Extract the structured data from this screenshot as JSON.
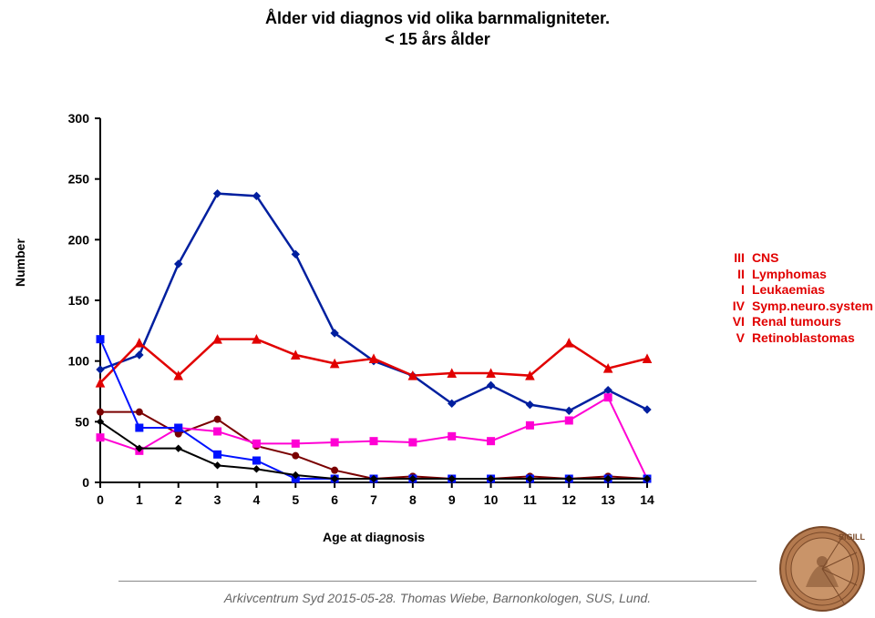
{
  "title": {
    "line1": "Ålder vid diagnos vid olika barnmaligniteter.",
    "line2": "< 15 års ålder",
    "fontsize": 18
  },
  "chart": {
    "type": "line",
    "background_color": "#ffffff",
    "axis_color": "#000000",
    "axis_width": 2,
    "xlabel": "Age at diagnosis",
    "ylabel": "Number",
    "label_fontsize": 14,
    "tick_fontsize": 14,
    "xlim": [
      0,
      14
    ],
    "xticks": [
      0,
      1,
      2,
      3,
      4,
      5,
      6,
      7,
      8,
      9,
      10,
      11,
      12,
      13,
      14
    ],
    "ylim": [
      0,
      300
    ],
    "yticks": [
      0,
      50,
      100,
      150,
      200,
      250,
      300
    ],
    "x": [
      0,
      1,
      2,
      3,
      4,
      5,
      6,
      7,
      8,
      9,
      10,
      11,
      12,
      13,
      14
    ],
    "series": [
      {
        "id": "III",
        "label": "CNS",
        "color": "#001f9f",
        "marker": "diamond",
        "marker_size": 8,
        "line_width": 2.5,
        "y": [
          93,
          105,
          180,
          238,
          236,
          188,
          123,
          100,
          88,
          65,
          80,
          64,
          59,
          76,
          60
        ]
      },
      {
        "id": "II",
        "label": "Lymphomas",
        "color": "#e10000",
        "marker": "triangle",
        "marker_size": 9,
        "line_width": 2.5,
        "y": [
          82,
          115,
          88,
          118,
          118,
          105,
          98,
          102,
          88,
          90,
          90,
          88,
          115,
          94,
          102
        ]
      },
      {
        "id": "I",
        "label": "Leukaemias",
        "color": "#7a0000",
        "marker": "circle",
        "marker_size": 7,
        "line_width": 2,
        "y": [
          58,
          58,
          40,
          52,
          30,
          22,
          10,
          3,
          5,
          3,
          3,
          5,
          3,
          5,
          3
        ]
      },
      {
        "id": "IV",
        "label": "Symp.neuro.system",
        "color": "#ff00d4",
        "marker": "square",
        "marker_size": 8,
        "line_width": 2,
        "y": [
          37,
          26,
          45,
          42,
          32,
          32,
          33,
          34,
          33,
          38,
          34,
          47,
          51,
          70,
          3
        ]
      },
      {
        "id": "VI",
        "label": "Renal tumours",
        "color": "#0012ff",
        "marker": "square",
        "marker_size": 8,
        "line_width": 2,
        "y": [
          118,
          45,
          45,
          23,
          18,
          3,
          3,
          3,
          3,
          3,
          3,
          3,
          3,
          3,
          3
        ]
      },
      {
        "id": "V",
        "label": "Retinoblastomas",
        "color": "#000000",
        "marker": "diamond",
        "marker_size": 7,
        "line_width": 2,
        "y": [
          50,
          28,
          28,
          14,
          11,
          6,
          3,
          3,
          3,
          3,
          3,
          3,
          3,
          3,
          3
        ]
      }
    ],
    "legend": {
      "position": "right-middle",
      "fontsize": 14,
      "items": [
        {
          "roman": "III",
          "label": "CNS",
          "color": "#e10000"
        },
        {
          "roman": "II",
          "label": "Lymphomas",
          "color": "#e10000"
        },
        {
          "roman": "I",
          "label": "Leukaemias",
          "color": "#e10000"
        },
        {
          "roman": "IV",
          "label": "Symp.neuro.system",
          "color": "#e10000"
        },
        {
          "roman": "VI",
          "label": "Renal tumours",
          "color": "#e10000"
        },
        {
          "roman": "V",
          "label": "Retinoblastomas",
          "color": "#e10000"
        }
      ]
    }
  },
  "footer": {
    "text": "Arkivcentrum Syd 2015-05-28. Thomas Wiebe, Barnonkologen, SUS, Lund.",
    "fontsize": 14,
    "color": "#666666"
  },
  "seal": {
    "outer_color": "#7a4a2a",
    "inner_color": "#b47a4f",
    "text": "SIGILL"
  }
}
